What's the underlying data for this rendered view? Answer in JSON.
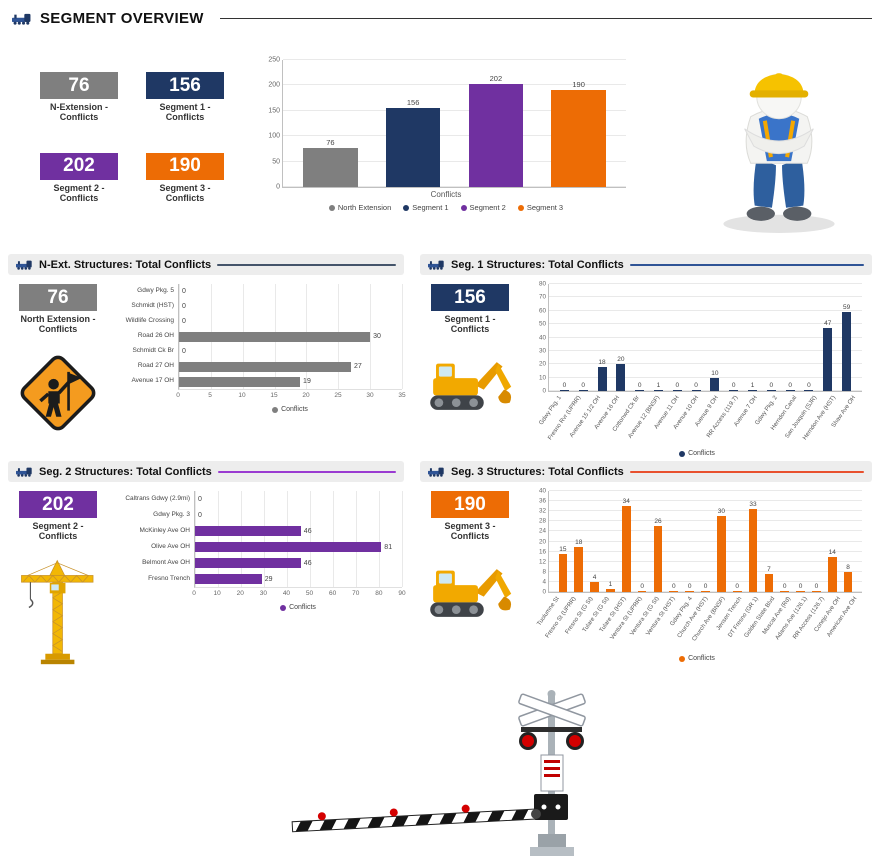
{
  "header": {
    "title": "SEGMENT OVERVIEW"
  },
  "colors": {
    "gray": "#7f7f7f",
    "navy": "#1f3864",
    "purple": "#7030a0",
    "orange": "#ed6c05"
  },
  "kpi_cards": [
    {
      "value": "76",
      "label": "N-Extension - Conflicts",
      "color": "#7f7f7f"
    },
    {
      "value": "156",
      "label": "Segment 1 - Conflicts",
      "color": "#1f3864"
    },
    {
      "value": "202",
      "label": "Segment 2 - Conflicts",
      "color": "#7030a0"
    },
    {
      "value": "190",
      "label": "Segment 3 - Conflicts",
      "color": "#ed6c05"
    }
  ],
  "panels": [
    {
      "title": "N-Ext. Structures: Total Conflicts",
      "line_color": "#44546a",
      "kpi": {
        "value": "76",
        "label": "North Extension - Conflicts",
        "color": "#7f7f7f"
      }
    },
    {
      "title": "Seg. 1 Structures: Total Conflicts",
      "line_color": "#2f5496",
      "kpi": {
        "value": "156",
        "label": "Segment 1 - Conflicts",
        "color": "#1f3864"
      }
    },
    {
      "title": "Seg. 2 Structures: Total Conflicts",
      "line_color": "#9a3bd1",
      "kpi": {
        "value": "202",
        "label": "Segment 2 - Conflicts",
        "color": "#7030a0"
      }
    },
    {
      "title": "Seg. 3 Structures: Total Conflicts",
      "line_color": "#e8502e",
      "kpi": {
        "value": "190",
        "label": "Segment 3 - Conflicts",
        "color": "#ed6c05"
      }
    }
  ],
  "images": {
    "train": "train-icon",
    "worker": "construction-worker-image",
    "flagman_sign": "flagman-warning-sign-image",
    "excavator": "excavator-image",
    "tower_crane": "tower-crane-image",
    "railroad_crossing": "railroad-crossing-signal-image"
  },
  "chart_data": [
    {
      "id": "overview",
      "type": "bar",
      "orientation": "vertical",
      "categories": [
        "North Extension",
        "Segment 1",
        "Segment 2",
        "Segment 3"
      ],
      "values": [
        76,
        156,
        202,
        190
      ],
      "colors": [
        "#7f7f7f",
        "#1f3864",
        "#7030a0",
        "#ed6c05"
      ],
      "ylim": [
        0,
        250
      ],
      "yticks": [
        0,
        50,
        100,
        150,
        200,
        250
      ],
      "xlabel": "Conflicts",
      "show_categories": false,
      "legend": [
        {
          "label": "North Extension",
          "color": "#7f7f7f"
        },
        {
          "label": "Segment 1",
          "color": "#1f3864"
        },
        {
          "label": "Segment 2",
          "color": "#7030a0"
        },
        {
          "label": "Segment 3",
          "color": "#ed6c05"
        }
      ]
    },
    {
      "id": "n_ext",
      "type": "bar",
      "orientation": "horizontal",
      "categories": [
        "Gdwy Pkg. 5",
        "Schmidt (HST)",
        "Wildlife Crossing",
        "Road 26 OH",
        "Schmidt Ck Br",
        "Road 27 OH",
        "Avenue 17 OH"
      ],
      "values": [
        0,
        0,
        0,
        30,
        0,
        27,
        19
      ],
      "color": "#7f7f7f",
      "xlim": [
        0,
        35
      ],
      "xticks": [
        0,
        5,
        10,
        15,
        20,
        25,
        30,
        35
      ],
      "legend": [
        {
          "label": "Conflicts",
          "color": "#7f7f7f"
        }
      ]
    },
    {
      "id": "seg1",
      "type": "bar",
      "orientation": "vertical",
      "categories": [
        "Gdwy Pkg. 1",
        "Fresno Rvr (UPRR)",
        "Avenue 15 1/2 OH",
        "Avenue 16 OH",
        "Cottonwd Ck Br",
        "Avenue 12 (BNSF)",
        "Avenue 11 OH",
        "Avenue 10 OH",
        "Avenue 9 OH",
        "RR Access (119.7)",
        "Avenue 7 OH",
        "Gdwy Pkg. 2",
        "Herndon Canal",
        "San Joaquin (SJR)",
        "Herndon Ave (HST)",
        "Shaw Ave OH"
      ],
      "values": [
        0,
        0,
        18,
        20,
        0,
        1,
        0,
        0,
        10,
        0,
        1,
        0,
        0,
        0,
        47,
        59
      ],
      "color": "#1f3864",
      "ylim": [
        0,
        80
      ],
      "yticks": [
        0,
        10,
        20,
        30,
        40,
        50,
        60,
        70,
        80
      ],
      "rotate_labels": true,
      "legend": [
        {
          "label": "Conflicts",
          "color": "#1f3864"
        }
      ]
    },
    {
      "id": "seg2",
      "type": "bar",
      "orientation": "horizontal",
      "categories": [
        "Caltrans Gdwy (2.9mi)",
        "Gdwy Pkg. 3",
        "McKinley Ave OH",
        "Olive Ave OH",
        "Belmont Ave OH",
        "Fresno Trench"
      ],
      "values": [
        0,
        0,
        46,
        81,
        46,
        29
      ],
      "color": "#7030a0",
      "xlim": [
        0,
        90
      ],
      "xticks": [
        0,
        10,
        20,
        30,
        40,
        50,
        60,
        70,
        80,
        90
      ],
      "legend": [
        {
          "label": "Conflicts",
          "color": "#7030a0"
        }
      ]
    },
    {
      "id": "seg3",
      "type": "bar",
      "orientation": "vertical",
      "categories": [
        "Tuolumne St",
        "Fresno St (UPRR)",
        "Fresno St (G St)",
        "Tulare St (G St)",
        "Tulare St (HST)",
        "Ventura St (UPRR)",
        "Ventura St (G St)",
        "Ventura St (HST)",
        "Gdwy Pkg. 4",
        "Church Ave (HST)",
        "Church Ave (BNSF)",
        "Jensen Trench",
        "DT Fresno (GR 1)",
        "Golden State Blvd",
        "Muscat Ave (Rd)",
        "Adams Ave (126.1)",
        "RR Access (126.7)",
        "Conejo Ave OH",
        "American Ave OH"
      ],
      "values": [
        15,
        18,
        4,
        1,
        34,
        0,
        26,
        0,
        0,
        0,
        30,
        0,
        33,
        7,
        0,
        0,
        0,
        14,
        8
      ],
      "color": "#ed6c05",
      "ylim": [
        0,
        40
      ],
      "yticks": [
        0,
        4,
        8,
        12,
        16,
        20,
        24,
        28,
        32,
        36,
        40
      ],
      "rotate_labels": true,
      "legend": [
        {
          "label": "Conflicts",
          "color": "#ed6c05"
        }
      ]
    }
  ]
}
